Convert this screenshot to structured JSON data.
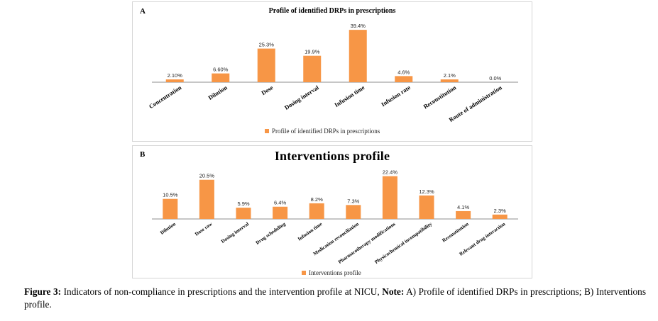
{
  "colors": {
    "bar": "#f79646",
    "axis": "#8c8c8c"
  },
  "caption": {
    "label": "Figure 3:",
    "text1": " Indicators of non-compliance in prescriptions and the intervention profile at NICU, ",
    "note": "Note:",
    "text2": " A) Profile of identified DRPs in prescriptions; B) Interventions profile."
  },
  "chart_data": [
    {
      "panel": "A",
      "type": "bar",
      "title": "Profile of identified DRPs in prescriptions",
      "categories": [
        "Concentration",
        "Dilution",
        "Dose",
        "Dosing interval",
        "Infusion time",
        "Infusion rate",
        "Reconstitution",
        "Route of administration"
      ],
      "values": [
        2.1,
        6.6,
        25.3,
        19.9,
        39.4,
        4.6,
        2.1,
        0.0
      ],
      "value_labels": [
        "2.10%",
        "6.60%",
        "25.3%",
        "19.9%",
        "39.4%",
        "4.6%",
        "2.1%",
        "0.0%"
      ],
      "series": [
        {
          "name": "Profile of identified DRPs in prescriptions",
          "values": [
            2.1,
            6.6,
            25.3,
            19.9,
            39.4,
            4.6,
            2.1,
            0.0
          ]
        }
      ],
      "ylim": [
        0,
        40
      ],
      "grid": false,
      "legend": "bottom"
    },
    {
      "panel": "B",
      "type": "bar",
      "title": "Interventions profile",
      "categories": [
        "Dilution",
        "Dose raw",
        "Dosing interval",
        "Drug scheduling",
        "Infusion time",
        "Medication reconciliation",
        "Pharmacotherapy modifications",
        "Physicochemical incompatibility",
        "Reconstitution",
        "Relevant drug interaction"
      ],
      "values": [
        10.5,
        20.5,
        5.9,
        6.4,
        8.2,
        7.3,
        22.4,
        12.3,
        4.1,
        2.3
      ],
      "value_labels": [
        "10.5%",
        "20.5%",
        "5.9%",
        "6.4%",
        "8.2%",
        "7.3%",
        "22.4%",
        "12.3%",
        "4.1%",
        "2.3%"
      ],
      "series": [
        {
          "name": "Interventions profile",
          "values": [
            10.5,
            20.5,
            5.9,
            6.4,
            8.2,
            7.3,
            22.4,
            12.3,
            4.1,
            2.3
          ]
        }
      ],
      "ylim": [
        0,
        23
      ],
      "grid": false,
      "legend": "bottom"
    }
  ]
}
